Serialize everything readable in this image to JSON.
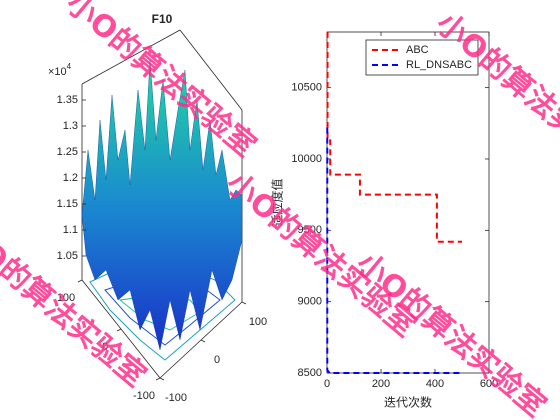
{
  "chart_data": [
    {
      "type": "surface3d",
      "title": "F10",
      "zlim": [
        10400,
        13700
      ],
      "zticks": [
        {
          "value": 10500,
          "label": "1.05"
        },
        {
          "value": 11000,
          "label": "1.1"
        },
        {
          "value": 11500,
          "label": "1.15"
        },
        {
          "value": 12000,
          "label": "1.2"
        },
        {
          "value": 12500,
          "label": "1.25"
        },
        {
          "value": 13000,
          "label": "1.3"
        },
        {
          "value": 13500,
          "label": "1.35"
        }
      ],
      "z_multiplier": {
        "base": "×10",
        "exponent": "4"
      },
      "xlim": [
        -100,
        100
      ],
      "xticks": [
        -100,
        0,
        100
      ],
      "ylim": [
        -100,
        100
      ],
      "yticks": [
        -100,
        0,
        100
      ]
    },
    {
      "type": "line",
      "xlabel": "迭代次数",
      "ylabel": "适应度值",
      "xlim": [
        0,
        600
      ],
      "xticks": [
        0,
        200,
        400,
        600
      ],
      "ylim": [
        8500,
        10890
      ],
      "yticks": [
        8500,
        9000,
        9500,
        10000,
        10500
      ],
      "legend": "upper right",
      "series": [
        {
          "name": "ABC",
          "color": "#ff0000",
          "x": [
            2,
            2,
            12,
            12,
            122,
            122,
            407,
            407,
            500
          ],
          "values": [
            10890,
            10130,
            10130,
            9890,
            9890,
            9750,
            9750,
            9420,
            9420
          ]
        },
        {
          "name": "RL_DNSABC",
          "color": "#0000ff",
          "x": [
            1,
            1,
            10,
            500
          ],
          "values": [
            10220,
            8520,
            8500,
            8500
          ]
        }
      ]
    }
  ],
  "watermark": "小O的算法实验室"
}
